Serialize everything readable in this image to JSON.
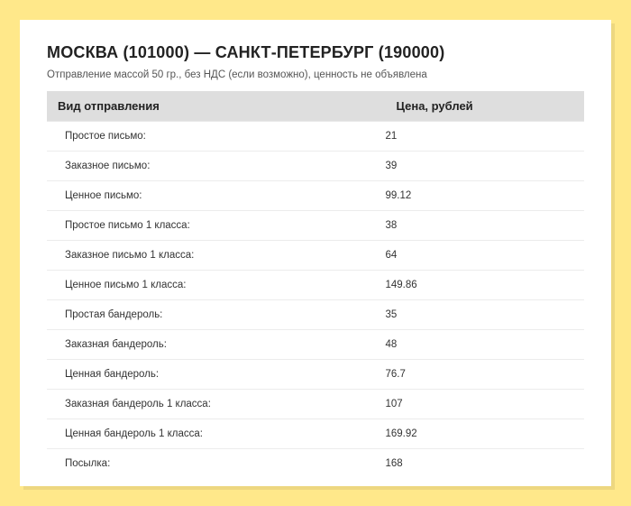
{
  "header": {
    "title": "МОСКВА (101000) — САНКТ-ПЕТЕРБУРГ (190000)",
    "subtitle": "Отправление массой 50 гр., без НДС (если возможно), ценность не объявлена"
  },
  "pricing_table": {
    "type": "table",
    "columns": [
      "Вид отправления",
      "Цена, рублей"
    ],
    "rows": [
      {
        "label": "Простое письмо:",
        "price": "21"
      },
      {
        "label": "Заказное письмо:",
        "price": "39"
      },
      {
        "label": "Ценное письмо:",
        "price": "99.12"
      },
      {
        "label": "Простое письмо 1 класса:",
        "price": "38"
      },
      {
        "label": "Заказное письмо 1 класса:",
        "price": "64"
      },
      {
        "label": "Ценное письмо 1 класса:",
        "price": "149.86"
      },
      {
        "label": "Простая бандероль:",
        "price": "35"
      },
      {
        "label": "Заказная бандероль:",
        "price": "48"
      },
      {
        "label": "Ценная бандероль:",
        "price": "76.7"
      },
      {
        "label": "Заказная бандероль 1 класса:",
        "price": "107"
      },
      {
        "label": "Ценная бандероль 1 класса:",
        "price": "169.92"
      },
      {
        "label": "Посылка:",
        "price": "168"
      }
    ],
    "styling": {
      "header_bg": "#dedede",
      "row_border": "#ececec",
      "card_bg": "#ffffff",
      "page_bg": "#ffe88a",
      "title_fontsize": 18,
      "header_fontsize": 13,
      "cell_fontsize": 11.5,
      "col1_width_pct": 63
    }
  }
}
